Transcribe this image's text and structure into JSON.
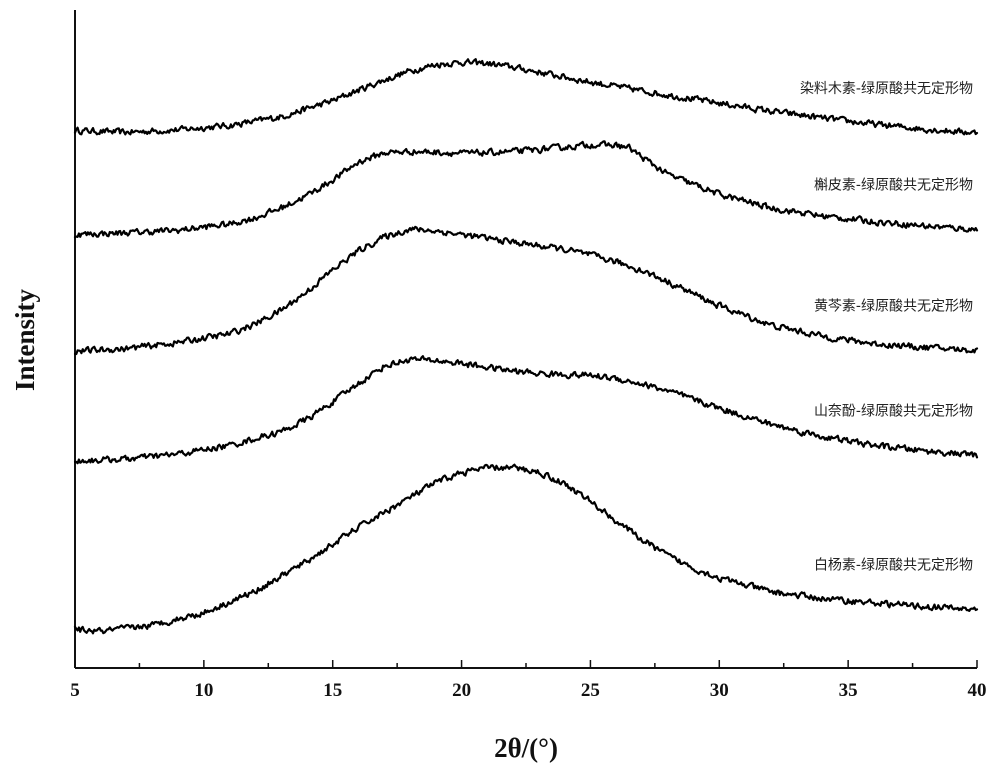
{
  "chart_data": {
    "type": "line",
    "xlabel": "2θ/(°)",
    "ylabel": "Intensity",
    "xlim": [
      5,
      40
    ],
    "ylim": [
      0,
      100
    ],
    "xticks": [
      5,
      10,
      15,
      20,
      25,
      30,
      35,
      40
    ],
    "yticks_shown": false,
    "grid": false,
    "legend": "series labels placed at right, above each curve",
    "line_color": "#000000",
    "series": [
      {
        "name": "染料木素-绿原酸共无定形物",
        "x": [
          5,
          7,
          9,
          11,
          13,
          15,
          16,
          17,
          18,
          19,
          20,
          21,
          22,
          23,
          24,
          25,
          26,
          27,
          28,
          30,
          32,
          34,
          36,
          38,
          40
        ],
        "y": [
          83.8,
          83.5,
          83.9,
          84.6,
          86.0,
          88.6,
          90.3,
          91.9,
          93.4,
          94.4,
          94.8,
          94.6,
          94.0,
          93.2,
          92.4,
          91.6,
          90.9,
          90.2,
          89.5,
          88.2,
          86.9,
          85.8,
          84.8,
          84.0,
          83.4
        ]
      },
      {
        "name": "槲皮素-绿原酸共无定形物",
        "x": [
          5,
          7,
          9,
          11,
          12,
          13,
          14,
          15,
          16,
          17,
          18,
          19,
          20,
          21,
          22,
          23,
          24,
          25,
          26,
          26.5,
          27,
          28,
          30,
          32,
          34,
          36,
          38,
          40
        ],
        "y": [
          67.0,
          67.3,
          67.7,
          68.7,
          69.7,
          71.3,
          73.3,
          75.8,
          78.7,
          80.2,
          80.4,
          80.3,
          80.1,
          80.2,
          80.4,
          80.7,
          81.1,
          81.5,
          81.4,
          81.0,
          79.5,
          76.7,
          73.5,
          71.3,
          70.0,
          69.1,
          68.4,
          67.8
        ]
      },
      {
        "name": "黄芩素-绿原酸共无定形物",
        "x": [
          5,
          7,
          9,
          11,
          12,
          13,
          14,
          15,
          16,
          17,
          18,
          19,
          20,
          21,
          22,
          23,
          24,
          25,
          26,
          27,
          28,
          30,
          32,
          34,
          36,
          38,
          40
        ],
        "y": [
          48.2,
          48.6,
          49.6,
          51.0,
          52.6,
          54.8,
          57.8,
          61.3,
          64.4,
          66.6,
          67.9,
          67.6,
          67.0,
          66.4,
          65.8,
          65.2,
          64.6,
          63.7,
          62.6,
          61.2,
          59.4,
          55.5,
          52.4,
          50.6,
          49.4,
          48.8,
          48.3
        ]
      },
      {
        "name": "山奈酚-绿原酸共无定形物",
        "x": [
          5,
          7,
          9,
          11,
          13,
          14,
          15,
          16,
          17,
          18,
          19,
          20,
          21,
          22,
          23,
          24,
          25,
          26,
          27,
          28,
          30,
          32,
          34,
          36,
          38,
          40
        ],
        "y": [
          30.5,
          30.8,
          31.6,
          33.0,
          35.2,
          37.2,
          40.0,
          43.0,
          45.8,
          46.9,
          46.7,
          46.2,
          45.6,
          45.0,
          44.6,
          44.4,
          44.3,
          43.8,
          42.9,
          41.8,
          39.0,
          36.4,
          34.4,
          33.0,
          32.1,
          31.4
        ]
      },
      {
        "name": "白杨素-绿原酸共无定形物",
        "x": [
          5,
          6,
          8,
          10,
          12,
          14,
          16,
          17,
          18,
          19,
          20,
          21,
          22,
          23,
          24,
          25,
          26,
          27,
          28,
          29,
          30,
          32,
          34,
          36,
          38,
          40
        ],
        "y": [
          3.3,
          3.0,
          4.0,
          6.0,
          9.5,
          14.3,
          19.8,
          22.2,
          24.6,
          27.0,
          28.6,
          29.4,
          29.4,
          28.7,
          26.8,
          24.0,
          20.8,
          17.8,
          15.2,
          13.2,
          11.6,
          9.4,
          8.3,
          7.6,
          7.0,
          6.5
        ]
      }
    ]
  }
}
